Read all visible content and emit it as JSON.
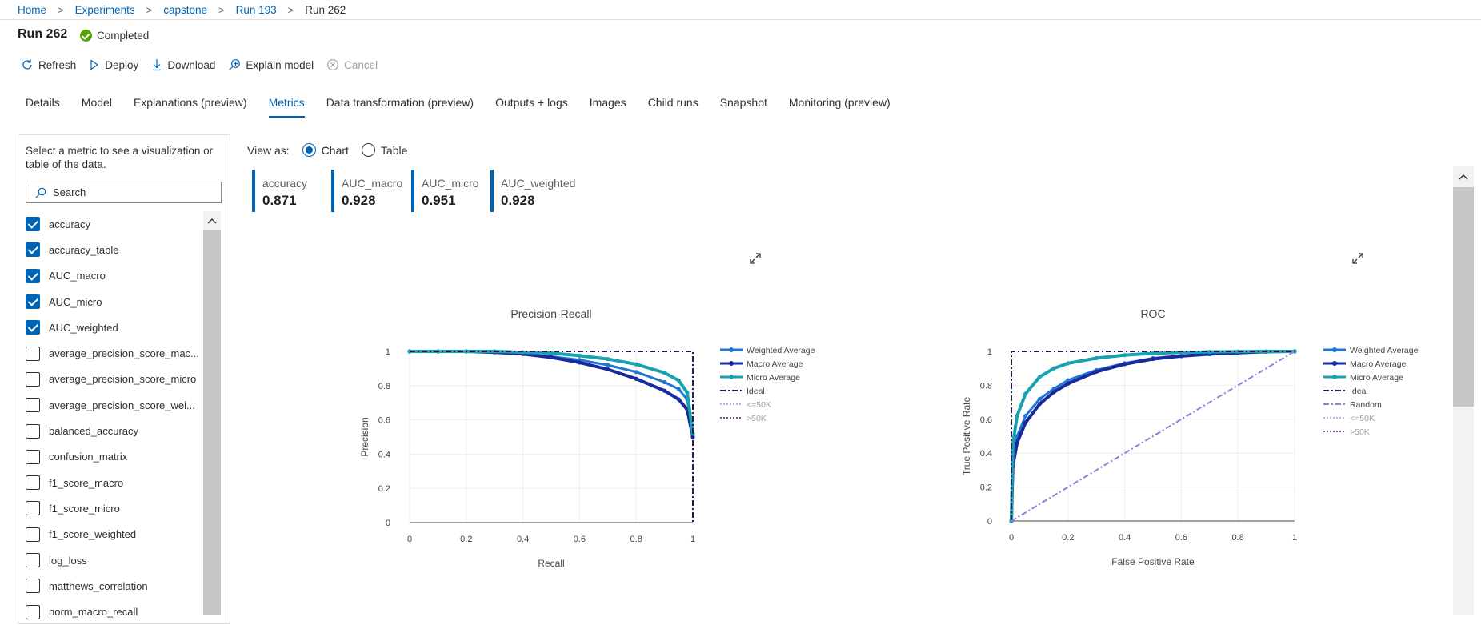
{
  "breadcrumb": [
    "Home",
    "Experiments",
    "capstone",
    "Run 193",
    "Run 262"
  ],
  "run": {
    "title": "Run 262",
    "status": "Completed",
    "status_color": "#57a300"
  },
  "toolbar": {
    "refresh": "Refresh",
    "deploy": "Deploy",
    "download": "Download",
    "explain": "Explain model",
    "cancel": "Cancel"
  },
  "tabs": [
    "Details",
    "Model",
    "Explanations (preview)",
    "Metrics",
    "Data transformation (preview)",
    "Outputs + logs",
    "Images",
    "Child runs",
    "Snapshot",
    "Monitoring (preview)"
  ],
  "active_tab": "Metrics",
  "panel": {
    "intro": "Select a metric to see a visualization or table of the data.",
    "search_placeholder": "Search",
    "metrics": [
      {
        "label": "accuracy",
        "checked": true
      },
      {
        "label": "accuracy_table",
        "checked": true
      },
      {
        "label": "AUC_macro",
        "checked": true
      },
      {
        "label": "AUC_micro",
        "checked": true
      },
      {
        "label": "AUC_weighted",
        "checked": true
      },
      {
        "label": "average_precision_score_mac...",
        "checked": false
      },
      {
        "label": "average_precision_score_micro",
        "checked": false
      },
      {
        "label": "average_precision_score_wei...",
        "checked": false
      },
      {
        "label": "balanced_accuracy",
        "checked": false
      },
      {
        "label": "confusion_matrix",
        "checked": false
      },
      {
        "label": "f1_score_macro",
        "checked": false
      },
      {
        "label": "f1_score_micro",
        "checked": false
      },
      {
        "label": "f1_score_weighted",
        "checked": false
      },
      {
        "label": "log_loss",
        "checked": false
      },
      {
        "label": "matthews_correlation",
        "checked": false
      },
      {
        "label": "norm_macro_recall",
        "checked": false
      }
    ]
  },
  "view_as": {
    "label": "View as:",
    "options": [
      "Chart",
      "Table"
    ],
    "selected": "Chart"
  },
  "kpis": [
    {
      "label": "accuracy",
      "value": "0.871"
    },
    {
      "label": "AUC_macro",
      "value": "0.928"
    },
    {
      "label": "AUC_micro",
      "value": "0.951"
    },
    {
      "label": "AUC_weighted",
      "value": "0.928"
    }
  ],
  "colors": {
    "accent": "#0064b4",
    "weighted": "#1f77d4",
    "macro": "#1a2a9c",
    "micro": "#17a2b0",
    "ideal": "#2b1650",
    "random": "#8b7fe0",
    "le50k": "#b7b3f0",
    "gt50k": "#8a4a9a"
  },
  "chart_data": [
    {
      "type": "line",
      "title": "Precision-Recall",
      "xlabel": "Recall",
      "ylabel": "Precision",
      "xlim": [
        0,
        1
      ],
      "ylim": [
        0,
        1
      ],
      "xticks": [
        "0",
        "0.2",
        "0.4",
        "0.6",
        "0.8",
        "1"
      ],
      "yticks": [
        "0",
        "0.2",
        "0.4",
        "0.6",
        "0.8",
        "1"
      ],
      "grid": true,
      "legend_position": "right",
      "legend": [
        "Weighted Average",
        "Macro Average",
        "Micro Average",
        "Ideal",
        "<=50K",
        ">50K"
      ],
      "series": [
        {
          "name": "Weighted Average",
          "x": [
            0,
            0.1,
            0.2,
            0.3,
            0.4,
            0.5,
            0.6,
            0.7,
            0.8,
            0.9,
            0.95,
            0.98,
            1
          ],
          "y": [
            1,
            1,
            1,
            0.995,
            0.985,
            0.97,
            0.95,
            0.92,
            0.88,
            0.82,
            0.78,
            0.72,
            0.5
          ]
        },
        {
          "name": "Macro Average",
          "x": [
            0,
            0.1,
            0.2,
            0.3,
            0.4,
            0.5,
            0.6,
            0.7,
            0.8,
            0.9,
            0.95,
            0.98,
            1
          ],
          "y": [
            1,
            1,
            1,
            0.995,
            0.985,
            0.965,
            0.935,
            0.895,
            0.84,
            0.77,
            0.72,
            0.66,
            0.5
          ]
        },
        {
          "name": "Micro Average",
          "x": [
            0,
            0.1,
            0.2,
            0.3,
            0.4,
            0.5,
            0.6,
            0.7,
            0.8,
            0.9,
            0.95,
            0.98,
            1
          ],
          "y": [
            1,
            1,
            1,
            1,
            0.995,
            0.99,
            0.975,
            0.955,
            0.925,
            0.875,
            0.83,
            0.76,
            0.52
          ]
        },
        {
          "name": "Ideal",
          "x": [
            0,
            1,
            1
          ],
          "y": [
            1,
            1,
            0
          ]
        }
      ]
    },
    {
      "type": "line",
      "title": "ROC",
      "xlabel": "False Positive Rate",
      "ylabel": "True Positive Rate",
      "xlim": [
        0,
        1
      ],
      "ylim": [
        0,
        1
      ],
      "xticks": [
        "0",
        "0.2",
        "0.4",
        "0.6",
        "0.8",
        "1"
      ],
      "yticks": [
        "0",
        "0.2",
        "0.4",
        "0.6",
        "0.8",
        "1"
      ],
      "grid": true,
      "legend_position": "right",
      "legend": [
        "Weighted Average",
        "Macro Average",
        "Micro Average",
        "Ideal",
        "Random",
        "<=50K",
        ">50K"
      ],
      "series": [
        {
          "name": "Weighted Average",
          "x": [
            0,
            0.005,
            0.02,
            0.05,
            0.1,
            0.15,
            0.2,
            0.3,
            0.4,
            0.5,
            0.6,
            0.7,
            0.8,
            0.9,
            1
          ],
          "y": [
            0,
            0.35,
            0.5,
            0.62,
            0.72,
            0.78,
            0.83,
            0.89,
            0.93,
            0.96,
            0.975,
            0.985,
            0.993,
            0.998,
            1
          ]
        },
        {
          "name": "Macro Average",
          "x": [
            0,
            0.005,
            0.02,
            0.05,
            0.1,
            0.15,
            0.2,
            0.3,
            0.4,
            0.5,
            0.6,
            0.7,
            0.8,
            0.9,
            1
          ],
          "y": [
            0,
            0.32,
            0.46,
            0.58,
            0.69,
            0.76,
            0.81,
            0.88,
            0.925,
            0.955,
            0.972,
            0.984,
            0.992,
            0.998,
            1
          ]
        },
        {
          "name": "Micro Average",
          "x": [
            0,
            0.005,
            0.02,
            0.05,
            0.1,
            0.15,
            0.2,
            0.3,
            0.4,
            0.5,
            0.6,
            0.7,
            0.8,
            0.9,
            1
          ],
          "y": [
            0,
            0.45,
            0.62,
            0.75,
            0.85,
            0.9,
            0.93,
            0.96,
            0.978,
            0.988,
            0.994,
            0.997,
            0.999,
            1,
            1
          ]
        },
        {
          "name": "Ideal",
          "x": [
            0,
            0,
            1
          ],
          "y": [
            0,
            1,
            1
          ]
        },
        {
          "name": "Random",
          "x": [
            0,
            1
          ],
          "y": [
            0,
            1
          ]
        }
      ]
    }
  ]
}
